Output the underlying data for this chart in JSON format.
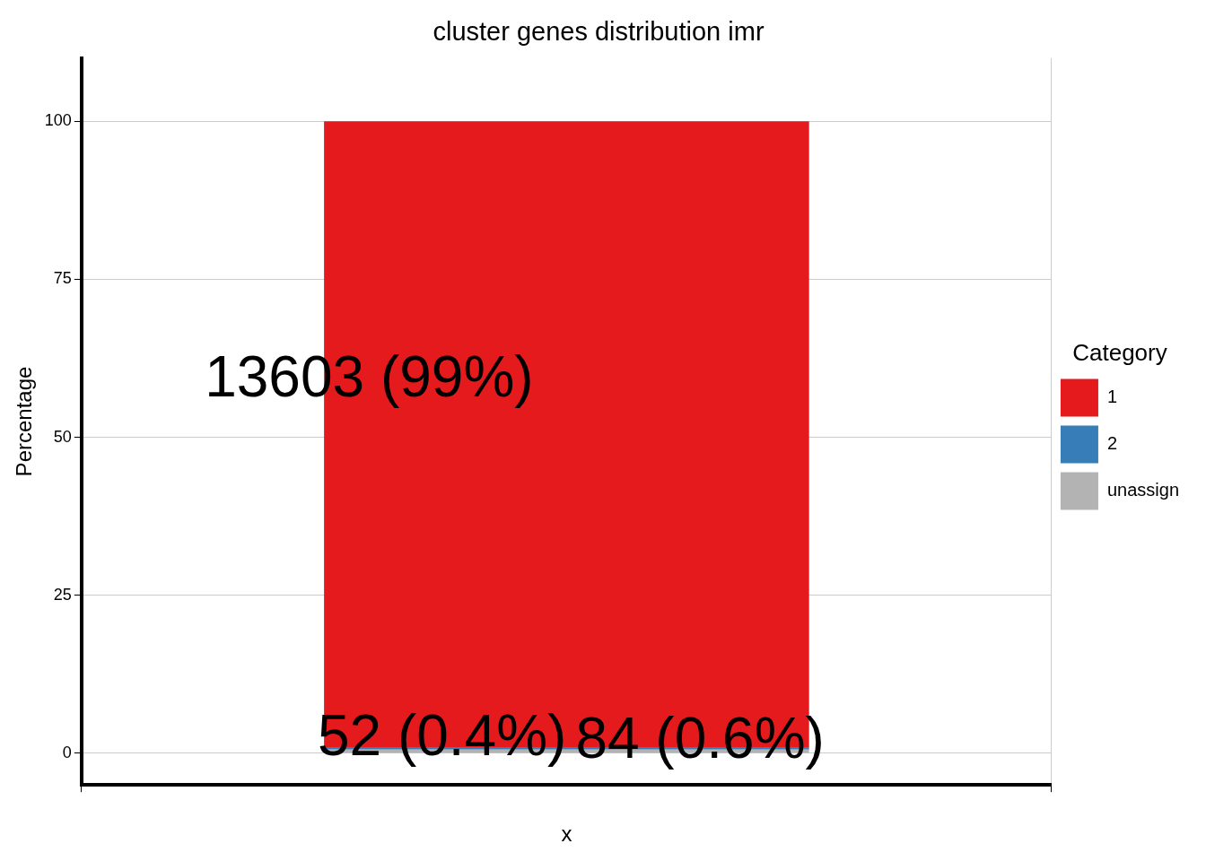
{
  "chart_data": {
    "type": "bar",
    "title": "cluster genes distribution imr",
    "xlabel": "x",
    "ylabel": "Percentage",
    "legend_title": "Category",
    "categories": [
      null
    ],
    "stacked": true,
    "series": [
      {
        "name": "unassign",
        "color": "#b3b3b3",
        "values": [
          0.6
        ],
        "value_labels": [
          "84 (0.6%)"
        ]
      },
      {
        "name": "2",
        "color": "#377eb8",
        "values": [
          0.4
        ],
        "value_labels": [
          "52 (0.4%)"
        ]
      },
      {
        "name": "1",
        "color": "#e41a1c",
        "values": [
          99
        ],
        "value_labels": [
          "13603 (99%)"
        ]
      }
    ],
    "ylim": [
      -5,
      110
    ],
    "yticks": [
      0,
      25,
      50,
      75,
      100
    ],
    "grid": true,
    "legend": "right"
  }
}
